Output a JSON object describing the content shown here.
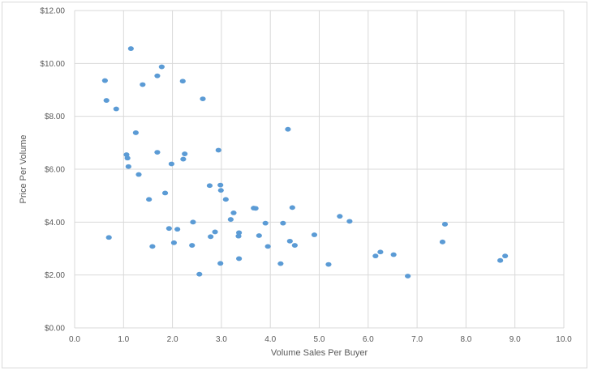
{
  "chart_data": {
    "type": "scatter",
    "title": "",
    "xlabel": "Volume Sales Per Buyer",
    "ylabel": "Price Per Volume",
    "xlim": [
      0,
      10
    ],
    "ylim": [
      0,
      12
    ],
    "x_ticks": [
      "0.0",
      "1.0",
      "2.0",
      "3.0",
      "4.0",
      "5.0",
      "6.0",
      "7.0",
      "8.0",
      "9.0",
      "10.0"
    ],
    "y_ticks": [
      "$0.00",
      "$2.00",
      "$4.00",
      "$6.00",
      "$8.00",
      "$10.00",
      "$12.00"
    ],
    "grid": "vertical and horizontal",
    "legend": "none",
    "marker_color": "#5b9bd5",
    "points": [
      {
        "x": 0.62,
        "y": 9.35
      },
      {
        "x": 0.65,
        "y": 8.6
      },
      {
        "x": 0.7,
        "y": 3.42
      },
      {
        "x": 0.85,
        "y": 8.28
      },
      {
        "x": 1.06,
        "y": 6.55
      },
      {
        "x": 1.08,
        "y": 6.42
      },
      {
        "x": 1.1,
        "y": 6.1
      },
      {
        "x": 1.15,
        "y": 10.56
      },
      {
        "x": 1.25,
        "y": 7.38
      },
      {
        "x": 1.31,
        "y": 5.8
      },
      {
        "x": 1.39,
        "y": 9.2
      },
      {
        "x": 1.52,
        "y": 4.86
      },
      {
        "x": 1.59,
        "y": 3.08
      },
      {
        "x": 1.69,
        "y": 9.53
      },
      {
        "x": 1.69,
        "y": 6.64
      },
      {
        "x": 1.78,
        "y": 9.87
      },
      {
        "x": 1.85,
        "y": 5.1
      },
      {
        "x": 1.93,
        "y": 3.76
      },
      {
        "x": 1.98,
        "y": 6.2
      },
      {
        "x": 2.03,
        "y": 3.22
      },
      {
        "x": 2.1,
        "y": 3.73
      },
      {
        "x": 2.21,
        "y": 9.33
      },
      {
        "x": 2.22,
        "y": 6.38
      },
      {
        "x": 2.25,
        "y": 6.58
      },
      {
        "x": 2.4,
        "y": 3.12
      },
      {
        "x": 2.42,
        "y": 4.0
      },
      {
        "x": 2.55,
        "y": 2.03
      },
      {
        "x": 2.62,
        "y": 8.66
      },
      {
        "x": 2.76,
        "y": 5.38
      },
      {
        "x": 2.78,
        "y": 3.45
      },
      {
        "x": 2.87,
        "y": 3.63
      },
      {
        "x": 2.94,
        "y": 6.72
      },
      {
        "x": 2.98,
        "y": 2.44
      },
      {
        "x": 2.98,
        "y": 5.4
      },
      {
        "x": 2.99,
        "y": 5.2
      },
      {
        "x": 3.09,
        "y": 4.86
      },
      {
        "x": 3.19,
        "y": 4.1
      },
      {
        "x": 3.25,
        "y": 4.35
      },
      {
        "x": 3.35,
        "y": 3.47
      },
      {
        "x": 3.36,
        "y": 3.6
      },
      {
        "x": 3.36,
        "y": 2.62
      },
      {
        "x": 3.66,
        "y": 4.53
      },
      {
        "x": 3.7,
        "y": 4.52
      },
      {
        "x": 3.77,
        "y": 3.49
      },
      {
        "x": 3.9,
        "y": 3.96
      },
      {
        "x": 3.95,
        "y": 3.08
      },
      {
        "x": 4.21,
        "y": 2.43
      },
      {
        "x": 4.26,
        "y": 3.96
      },
      {
        "x": 4.36,
        "y": 7.51
      },
      {
        "x": 4.4,
        "y": 3.28
      },
      {
        "x": 4.45,
        "y": 4.55
      },
      {
        "x": 4.5,
        "y": 3.12
      },
      {
        "x": 4.9,
        "y": 3.52
      },
      {
        "x": 5.19,
        "y": 2.4
      },
      {
        "x": 5.42,
        "y": 4.22
      },
      {
        "x": 5.62,
        "y": 4.03
      },
      {
        "x": 6.15,
        "y": 2.72
      },
      {
        "x": 6.25,
        "y": 2.87
      },
      {
        "x": 6.52,
        "y": 2.77
      },
      {
        "x": 6.81,
        "y": 1.96
      },
      {
        "x": 7.52,
        "y": 3.25
      },
      {
        "x": 7.57,
        "y": 3.92
      },
      {
        "x": 8.7,
        "y": 2.55
      },
      {
        "x": 8.8,
        "y": 2.72
      }
    ]
  }
}
